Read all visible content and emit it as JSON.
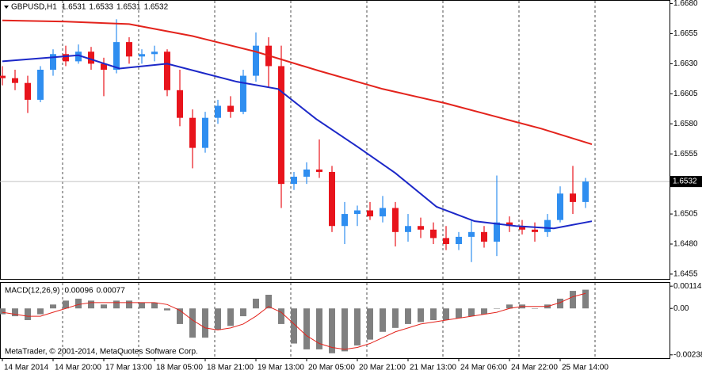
{
  "chart_data": [
    {
      "type": "candlestick",
      "title": "GBPUSD,H1",
      "header_values": [
        1.6531,
        1.6533,
        1.6531,
        1.6532
      ],
      "x": [
        0,
        4,
        8,
        12,
        16,
        20,
        24,
        28,
        32,
        36,
        40,
        44,
        48,
        52,
        56,
        60,
        64,
        68,
        72,
        76,
        80,
        84,
        88,
        92,
        96,
        100,
        104,
        108,
        112,
        116,
        120,
        124,
        128,
        132,
        136,
        140,
        144,
        148,
        152,
        156,
        160,
        164,
        168,
        172,
        176,
        180,
        184
      ],
      "open": [
        1.662,
        1.6618,
        1.6614,
        1.66,
        1.6625,
        1.6638,
        1.6632,
        1.664,
        1.663,
        1.6625,
        1.6648,
        1.6636,
        1.6638,
        1.664,
        1.6608,
        1.6585,
        1.656,
        1.6585,
        1.6595,
        1.659,
        1.662,
        1.6645,
        1.6628,
        1.653,
        1.6536,
        1.6542,
        1.654,
        1.6495,
        1.6505,
        1.6508,
        1.6503,
        1.651,
        1.649,
        1.6495,
        1.6492,
        1.6485,
        1.648,
        1.6486,
        1.649,
        1.6482,
        1.6498,
        1.6495,
        1.6492,
        1.649,
        1.65,
        1.6522,
        1.6515
      ],
      "high": [
        1.6628,
        1.6625,
        1.662,
        1.6628,
        1.6642,
        1.6645,
        1.6646,
        1.6644,
        1.6635,
        1.6667,
        1.6652,
        1.6642,
        1.6645,
        1.6642,
        1.6625,
        1.6592,
        1.659,
        1.66,
        1.6603,
        1.6625,
        1.6656,
        1.6652,
        1.6645,
        1.654,
        1.6548,
        1.6567,
        1.6545,
        1.6515,
        1.6512,
        1.6515,
        1.652,
        1.6515,
        1.6505,
        1.6502,
        1.6498,
        1.6495,
        1.649,
        1.65,
        1.6495,
        1.6537,
        1.6503,
        1.65,
        1.6498,
        1.6505,
        1.6528,
        1.6545,
        1.6535
      ],
      "low": [
        1.6612,
        1.6608,
        1.6589,
        1.6598,
        1.662,
        1.6628,
        1.663,
        1.6625,
        1.6603,
        1.6622,
        1.663,
        1.663,
        1.6632,
        1.6603,
        1.6578,
        1.6543,
        1.6556,
        1.658,
        1.6585,
        1.6588,
        1.6615,
        1.661,
        1.651,
        1.6525,
        1.653,
        1.6535,
        1.649,
        1.648,
        1.6495,
        1.65,
        1.6498,
        1.6478,
        1.6482,
        1.6485,
        1.648,
        1.6475,
        1.6475,
        1.6465,
        1.6477,
        1.647,
        1.649,
        1.6488,
        1.6482,
        1.6486,
        1.6498,
        1.6505,
        1.651
      ],
      "close": [
        1.6618,
        1.6614,
        1.66,
        1.6625,
        1.6638,
        1.6632,
        1.664,
        1.663,
        1.6625,
        1.6648,
        1.6636,
        1.6638,
        1.664,
        1.6608,
        1.6585,
        1.656,
        1.6585,
        1.6595,
        1.659,
        1.662,
        1.6645,
        1.6628,
        1.653,
        1.6536,
        1.6542,
        1.654,
        1.6495,
        1.6505,
        1.6508,
        1.6503,
        1.651,
        1.649,
        1.6495,
        1.6492,
        1.6485,
        1.648,
        1.6486,
        1.649,
        1.6482,
        1.6498,
        1.6495,
        1.6492,
        1.649,
        1.65,
        1.6522,
        1.6515,
        1.6532
      ],
      "up_color": "#2f8ef0",
      "down_color": "#e8141c",
      "lines": [
        {
          "color": "#e3231c",
          "x": [
            0,
            20,
            40,
            60,
            80,
            100,
            120,
            140,
            160,
            170,
            186
          ],
          "values": [
            1.6666,
            1.6665,
            1.6663,
            1.6653,
            1.664,
            1.6624,
            1.6609,
            1.6597,
            1.6583,
            1.6576,
            1.6563
          ]
        },
        {
          "color": "#1c28c8",
          "x": [
            0,
            24,
            37,
            52,
            74,
            87,
            99,
            112,
            124,
            137,
            149,
            162,
            174,
            186
          ],
          "values": [
            1.6632,
            1.6637,
            1.6626,
            1.663,
            1.6615,
            1.6609,
            1.6584,
            1.6561,
            1.6539,
            1.6511,
            1.6499,
            1.6495,
            1.6493,
            1.6499
          ]
        }
      ],
      "last_price": 1.6532,
      "xlim": [
        -0.75,
        210.5
      ],
      "xgrid": [
        19,
        43,
        67,
        91,
        115,
        139,
        163,
        187
      ],
      "ylim": [
        1.6451,
        1.6683
      ],
      "yticks": [
        {
          "value": 1.668,
          "label": "1.6680"
        },
        {
          "value": 1.6655,
          "label": "1.6655"
        },
        {
          "value": 1.663,
          "label": "1.6630"
        },
        {
          "value": 1.6605,
          "label": "1.6605"
        },
        {
          "value": 1.658,
          "label": "1.6580"
        },
        {
          "value": 1.6555,
          "label": "1.6555"
        },
        {
          "value": 1.6505,
          "label": "1.6505"
        },
        {
          "value": 1.648,
          "label": "1.6480"
        },
        {
          "value": 1.6455,
          "label": "1.6455"
        }
      ]
    },
    {
      "type": "macd",
      "title": "MACD(12,26,9)",
      "header_values": [
        0.00096,
        0.00077
      ],
      "x": [
        0,
        4,
        8,
        12,
        16,
        20,
        24,
        28,
        32,
        36,
        40,
        44,
        48,
        52,
        56,
        60,
        64,
        68,
        72,
        76,
        80,
        84,
        88,
        92,
        96,
        100,
        104,
        108,
        112,
        116,
        120,
        124,
        128,
        132,
        136,
        140,
        144,
        148,
        152,
        156,
        160,
        164,
        168,
        172,
        176,
        180,
        184
      ],
      "histogram": {
        "color": "#808080",
        "values": [
          -0.0003,
          -0.0004,
          -0.0006,
          -0.0003,
          0.0002,
          0.0004,
          0.0005,
          0.0004,
          0.0002,
          0.0004,
          0.0004,
          0.0003,
          0.0003,
          -0.0001,
          -0.0008,
          -0.0015,
          -0.0015,
          -0.0011,
          -0.0009,
          -0.0004,
          0.0005,
          0.0007,
          -0.0008,
          -0.0018,
          -0.0021,
          -0.0021,
          -0.0023,
          -0.0022,
          -0.0019,
          -0.0016,
          -0.0012,
          -0.001,
          -0.0008,
          -0.0007,
          -0.0006,
          -0.0006,
          -0.0005,
          -0.0004,
          -0.0003,
          0,
          0.0002,
          0.0002,
          0,
          0.0002,
          0.0005,
          0.0009,
          0.00096
        ]
      },
      "signal": {
        "color": "#e3231c",
        "values": [
          -0.0002,
          -0.0003,
          -0.0004,
          -0.0004,
          -0.0002,
          0,
          0.0002,
          0.0003,
          0.0003,
          0.0003,
          0.0003,
          0.0003,
          0.0003,
          0.0002,
          -0.0001,
          -0.0006,
          -0.001,
          -0.0011,
          -0.001,
          -0.0008,
          -0.0004,
          0.0001,
          -0.0002,
          -0.0008,
          -0.0014,
          -0.0018,
          -0.002,
          -0.0021,
          -0.002,
          -0.0018,
          -0.0015,
          -0.0012,
          -0.001,
          -0.0008,
          -0.0007,
          -0.0006,
          -0.0005,
          -0.0004,
          -0.0003,
          -0.0002,
          0,
          0.0001,
          0.0001,
          0.0001,
          0.0003,
          0.0006,
          0.00077
        ]
      },
      "footer": "MetaTrader, © 2001-2014, MetaQuotes Software Corp.",
      "xlim": [
        -0.75,
        210.5
      ],
      "xgrid": [
        19,
        43,
        67,
        91,
        115,
        139,
        163,
        187
      ],
      "ylim": [
        -0.00255,
        0.00135
      ],
      "yticks": [
        0.00114,
        {
          "value": 0,
          "label": "0.00"
        },
        -0.00238
      ],
      "xticks": [
        {
          "value": 0,
          "label": "14 Mar 2014"
        },
        {
          "value": 16,
          "label": "14 Mar 20:00"
        },
        {
          "value": 32,
          "label": "17 Mar 13:00"
        },
        {
          "value": 48,
          "label": "18 Mar 05:00"
        },
        {
          "value": 64,
          "label": "18 Mar 21:00"
        },
        {
          "value": 80,
          "label": "19 Mar 13:00"
        },
        {
          "value": 96,
          "label": "20 Mar 05:00"
        },
        {
          "value": 112,
          "label": "20 Mar 21:00"
        },
        {
          "value": 128,
          "label": "21 Mar 13:00"
        },
        {
          "value": 144,
          "label": "24 Mar 06:00"
        },
        {
          "value": 160,
          "label": "24 Mar 22:00"
        },
        {
          "value": 176,
          "label": "25 Mar 14:00"
        }
      ]
    }
  ]
}
